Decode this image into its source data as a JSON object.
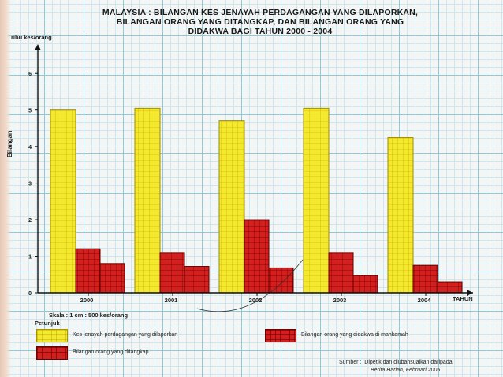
{
  "chart_data": {
    "type": "bar",
    "title_lines": [
      "MALAYSIA : BILANGAN KES JENAYAH PERDAGANGAN YANG DILAPORKAN,",
      "BILANGAN ORANG YANG DITANGKAP, DAN BILANGAN ORANG YANG",
      "DIDAKWA BAGI TAHUN 2000 - 2004"
    ],
    "categories": [
      "2000",
      "2001",
      "2002",
      "2003",
      "2004"
    ],
    "series": [
      {
        "name": "Kes jenayah perdagangan yang dilaporkan",
        "color": "#f5e92e",
        "values": [
          5.0,
          5.05,
          4.7,
          5.05,
          4.25
        ]
      },
      {
        "name": "Bilangan orang yang ditangkap",
        "color": "#d41f1f",
        "values": [
          1.2,
          1.1,
          2.0,
          1.1,
          0.75
        ]
      },
      {
        "name": "Bilangan orang yang didakwa di mahkamah",
        "color": "#d41f1f",
        "values": [
          0.8,
          0.72,
          0.68,
          0.47,
          0.3
        ]
      }
    ],
    "ylabel_top": "ribu kes/orang",
    "ylabel_side": "Bilangan",
    "xlabel": "TAHUN",
    "yticks": [
      0,
      1,
      2,
      3,
      4,
      5,
      6
    ],
    "ylim": [
      0,
      6.5
    ],
    "scale_note": "Skala : 1 cm : 500 kes/orang",
    "legend_title": "Petunjuk",
    "legend_placement": "bottom",
    "source_label": "Sumber",
    "source_text": "Dipetik dan diubahsuaikan daripada",
    "source_pub": "Berita Harian, Februari 2005"
  }
}
